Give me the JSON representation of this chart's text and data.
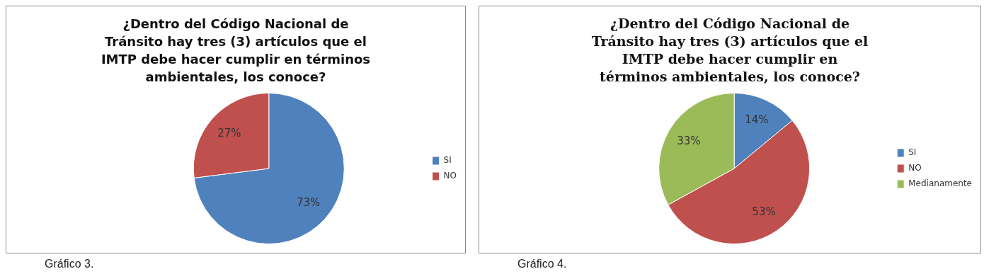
{
  "chart_data": [
    {
      "type": "pie",
      "title": "¿Dentro del Código Nacional de Tránsito hay tres (3) artículos que el IMTP debe hacer cumplir en términos ambientales, los conoce?",
      "categories": [
        "SI",
        "NO"
      ],
      "values": [
        73,
        27
      ],
      "colors": [
        "#4f81bd",
        "#c0504d"
      ],
      "value_labels": [
        "73%",
        "27%"
      ],
      "legend": "right",
      "annotations": [
        "Gráfico 3."
      ]
    },
    {
      "type": "pie",
      "title": "¿Dentro del Código Nacional de Tránsito hay tres (3) artículos que el IMTP debe hacer cumplir en términos ambientales, los conoce?",
      "categories": [
        "SI",
        "NO",
        "Medianamente"
      ],
      "values": [
        14,
        53,
        33
      ],
      "colors": [
        "#4f81bd",
        "#c0504d",
        "#9bbb59"
      ],
      "value_labels": [
        "14%",
        "53%",
        "33%"
      ],
      "legend": "right",
      "annotations": [
        "Gráfico 4."
      ]
    }
  ]
}
